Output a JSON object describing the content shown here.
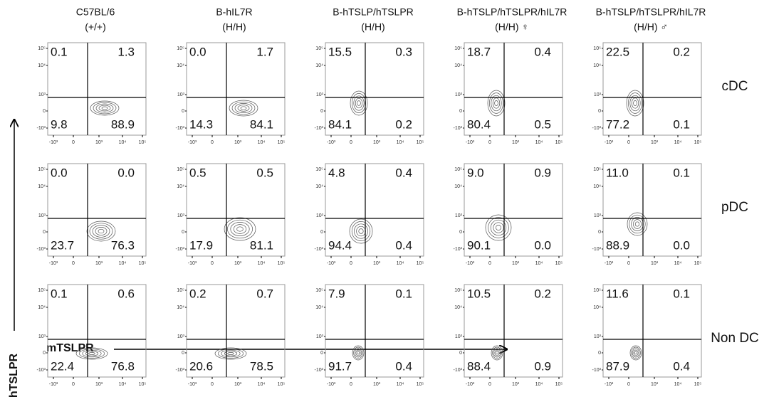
{
  "figure": {
    "columns": [
      [
        "C57BL/6",
        "(+/+)"
      ],
      [
        "B-hIL7R",
        "(H/H)"
      ],
      [
        "B-hTSLP/hTSLPR",
        "(H/H)"
      ],
      [
        "B-hTSLP/hTSLPR/hIL7R",
        "(H/H) ♀"
      ],
      [
        "B-hTSLP/hTSLPR/hIL7R",
        "(H/H) ♂"
      ]
    ],
    "rows": [
      "cDC",
      "pDC",
      "Non DC"
    ],
    "panels": [
      [
        [
          "0.1",
          "1.3",
          "9.8",
          "88.9"
        ],
        [
          "0.0",
          "1.7",
          "14.3",
          "84.1"
        ],
        [
          "15.5",
          "0.3",
          "84.1",
          "0.2"
        ],
        [
          "18.7",
          "0.4",
          "80.4",
          "0.5"
        ],
        [
          "22.5",
          "0.2",
          "77.2",
          "0.1"
        ]
      ],
      [
        [
          "0.0",
          "0.0",
          "23.7",
          "76.3"
        ],
        [
          "0.5",
          "0.5",
          "17.9",
          "81.1"
        ],
        [
          "4.8",
          "0.4",
          "94.4",
          "0.4"
        ],
        [
          "9.0",
          "0.9",
          "90.1",
          "0.0"
        ],
        [
          "11.0",
          "0.1",
          "88.9",
          "0.0"
        ]
      ],
      [
        [
          "0.1",
          "0.6",
          "22.4",
          "76.8"
        ],
        [
          "0.2",
          "0.7",
          "20.6",
          "78.5"
        ],
        [
          "7.9",
          "0.1",
          "91.7",
          "0.4"
        ],
        [
          "10.5",
          "0.2",
          "88.4",
          "0.9"
        ],
        [
          "11.6",
          "0.1",
          "87.9",
          "0.4"
        ]
      ]
    ],
    "yticks": [
      "10⁵",
      "10⁴",
      "10³",
      "0",
      "-10³"
    ],
    "xticks": [
      "-10³",
      "0",
      "10³",
      "10⁴",
      "10⁵"
    ],
    "ylabel": "hTSLPR",
    "xlabel": "mTSLPR"
  }
}
